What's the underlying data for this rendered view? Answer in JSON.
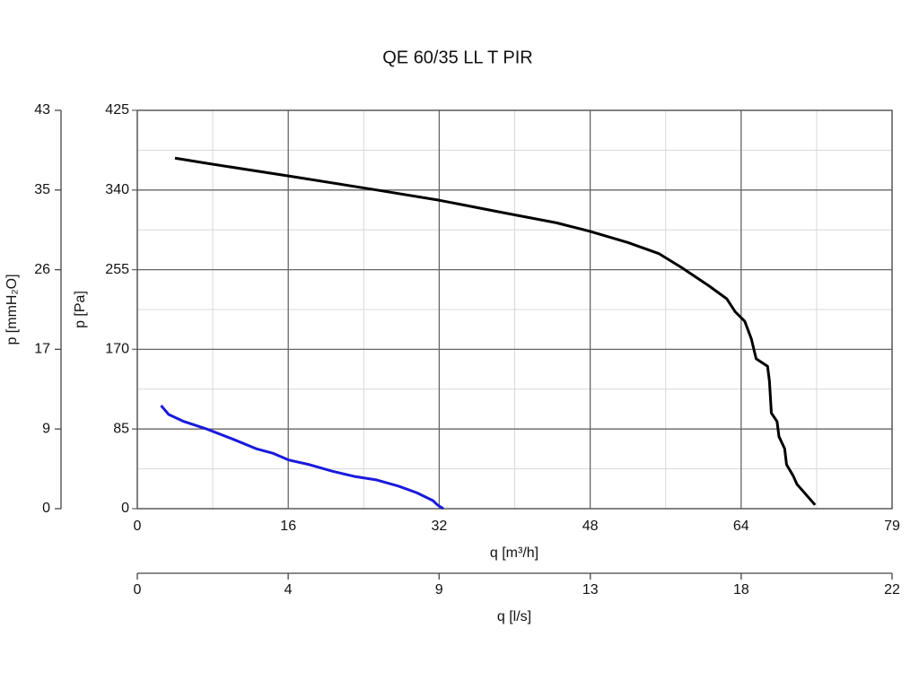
{
  "chart_data": {
    "type": "line",
    "title": "QE 60/35 LL T PIR",
    "x_label": "q [m³/h]",
    "y_label": "p [Pa]",
    "y2_label": "p [mmH₂O]",
    "x2_label": "q [l/s]",
    "xlim": [
      0,
      79.4
    ],
    "xticks": [
      0,
      {
        "value": 15.88,
        "label": "16"
      },
      {
        "value": 31.76,
        "label": "32"
      },
      {
        "value": 47.64,
        "label": "48"
      },
      {
        "value": 63.52,
        "label": "64"
      },
      {
        "value": 79.4,
        "label": "79"
      }
    ],
    "ylim": [
      0,
      425
    ],
    "yticks": [
      0,
      85,
      170,
      255,
      340,
      425
    ],
    "y2lim": [
      0,
      43.34
    ],
    "y2ticks": [
      0,
      {
        "value": 8.67,
        "label": "9"
      },
      {
        "value": 17.34,
        "label": "17"
      },
      {
        "value": 26.0,
        "label": "26"
      },
      {
        "value": 34.67,
        "label": "35"
      },
      {
        "value": 43.34,
        "label": "43"
      }
    ],
    "x2lim": [
      0,
      22.06
    ],
    "x2ticks": [
      0,
      {
        "value": 4.41,
        "label": "4"
      },
      {
        "value": 8.82,
        "label": "9"
      },
      {
        "value": 13.24,
        "label": "13"
      },
      {
        "value": 17.65,
        "label": "18"
      },
      {
        "value": 22.06,
        "label": "22"
      }
    ],
    "grid": true,
    "series": [
      {
        "color": "#000000",
        "x": [
          3.96,
          7.3,
          15.9,
          25.2,
          31.8,
          38.4,
          44.1,
          47.6,
          51.6,
          54.9,
          57.3,
          60.1,
          62.0,
          62.9,
          63.9,
          64.6,
          65.1,
          66.3,
          66.5,
          66.7,
          67.3,
          67.5,
          68.1,
          68.3,
          69.0,
          69.4,
          71.3
        ],
        "values": [
          374,
          368.5,
          355,
          340,
          329,
          316,
          305,
          296,
          284,
          272,
          257,
          238,
          224,
          210,
          200,
          181,
          160,
          152,
          136,
          102,
          93,
          77,
          64,
          47,
          35,
          26,
          4
        ]
      },
      {
        "color": "#1a1adc",
        "x": [
          2.5,
          3.3,
          4.9,
          7.3,
          10.1,
          12.5,
          14.3,
          15.9,
          18.1,
          20.5,
          22.8,
          25.2,
          27.5,
          29.4,
          31.1,
          31.6,
          32.2
        ],
        "values": [
          110,
          100.5,
          93,
          85,
          74,
          64,
          59,
          52,
          47,
          40,
          34.5,
          30.6,
          24,
          17,
          8.6,
          3.8,
          0
        ]
      }
    ]
  }
}
